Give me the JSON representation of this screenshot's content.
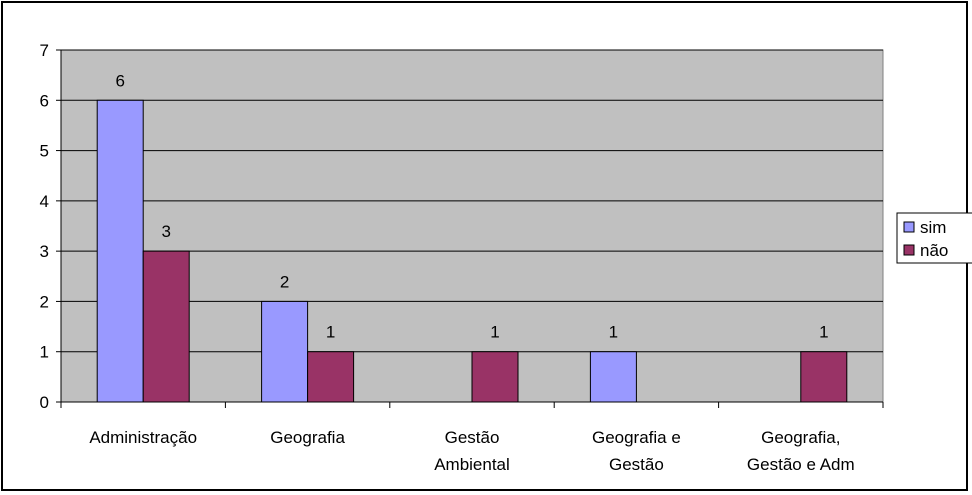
{
  "chart_data": {
    "type": "bar",
    "title": "",
    "xlabel": "",
    "ylabel": "",
    "ylim": [
      0,
      7
    ],
    "yticks": [
      "0",
      "1",
      "2",
      "3",
      "4",
      "5",
      "6",
      "7"
    ],
    "grid": true,
    "legend_position": "right",
    "categories": [
      [
        "Administração"
      ],
      [
        "Geografia"
      ],
      [
        "Gestão",
        "Ambiental"
      ],
      [
        "Geografia e",
        "Gestão"
      ],
      [
        "Geografia,",
        "Gestão e Adm"
      ]
    ],
    "series": [
      {
        "name": "sim",
        "color": "#9999FF",
        "values": [
          6,
          2,
          null,
          1,
          null
        ]
      },
      {
        "name": "não",
        "color": "#993366",
        "values": [
          3,
          1,
          1,
          null,
          1
        ]
      }
    ],
    "plot_background": "#C0C0C0"
  }
}
